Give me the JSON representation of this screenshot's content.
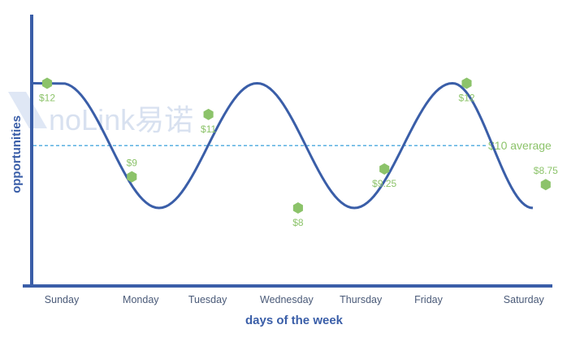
{
  "chart_data": {
    "type": "line",
    "xlabel": "days of the week",
    "ylabel": "opportunities",
    "categories": [
      "Sunday",
      "Monday",
      "Tuesday",
      "Wednesday",
      "Thursday",
      "Friday",
      "Saturday"
    ],
    "wave": {
      "description_values": [
        12,
        8,
        12,
        8,
        12,
        8
      ],
      "x_at": [
        0,
        1.27,
        2.55,
        3.82,
        5.1,
        6.15
      ],
      "color": "#3a5ea8"
    },
    "points": [
      {
        "x": 0.0,
        "value": 12,
        "label": "$12"
      },
      {
        "x": 1.0,
        "value": 9,
        "label": "$9"
      },
      {
        "x": 2.0,
        "value": 11,
        "label": "$11"
      },
      {
        "x": 3.0,
        "value": 8,
        "label": "$8"
      },
      {
        "x": 4.0,
        "value": 9.25,
        "label": "$9.25"
      },
      {
        "x": 5.0,
        "value": 12,
        "label": "$12"
      },
      {
        "x": 6.0,
        "value": 8.75,
        "label": "$8.75"
      }
    ],
    "average": {
      "value": 10,
      "label": "$10 average"
    },
    "ylim": [
      5.5,
      14.2
    ],
    "grid": false,
    "colors": {
      "axis": "#3a5ea8",
      "wave": "#3a5ea8",
      "points": "#8cc36a",
      "point_labels": "#8cc36a",
      "average_line": "#5ab0e0",
      "average_label": "#8cc36a",
      "tick_labels": "#4a5a78"
    }
  },
  "watermark": {
    "text": "noLink易诺"
  }
}
